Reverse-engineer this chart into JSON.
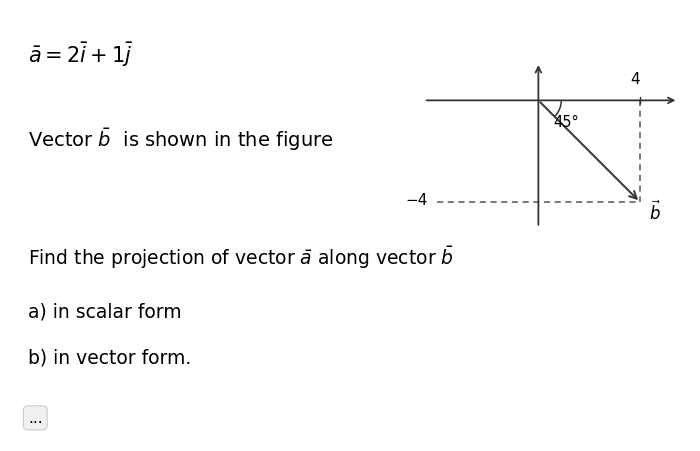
{
  "bg_color": "#ffffff",
  "text_color": "#000000",
  "fig_width": 7.0,
  "fig_height": 4.52,
  "dpi": 100,
  "line1": "$\\bar{a} = 2\\bar{i} +1\\bar{j}$",
  "line2": "Vector $\\bar{b}$  is shown in the figure",
  "line3": "Find the projection of vector $\\bar{a}$ along vector $\\bar{b}$",
  "line4": "a) in scalar form",
  "line5": "b) in vector form.",
  "line6": "...",
  "bx": 4.0,
  "by": -4.0,
  "angle_label": "45°",
  "dashed_color": "#555555",
  "arrow_color": "#333333",
  "axis_color": "#333333"
}
